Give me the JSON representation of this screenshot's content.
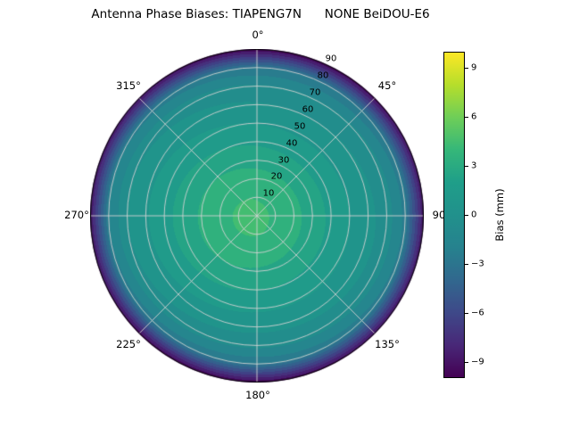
{
  "title": "Antenna Phase Biases: TIAPENG7N      NONE BeiDOU-E6",
  "chart_data": {
    "type": "polar_contour",
    "title": "Antenna Phase Biases: TIAPENG7N      NONE BeiDOU-E6",
    "station": "TIAPENG7N",
    "antenna": "NONE",
    "signal": "BeiDOU-E6",
    "theta_tick_labels": [
      "0°",
      "45°",
      "90",
      "135°",
      "180°",
      "225°",
      "270°",
      "315°"
    ],
    "radial_tick_labels": [
      "10",
      "20",
      "30",
      "40",
      "50",
      "60",
      "70",
      "80",
      "90"
    ],
    "radial_ticks_deg": [
      10,
      20,
      30,
      40,
      50,
      60,
      70,
      80,
      90
    ],
    "radial_axis_max_deg": 90,
    "contour_step_mm": 1.0,
    "bias_profile": {
      "zenith_deg": [
        0,
        10,
        20,
        30,
        40,
        50,
        60,
        70,
        80,
        90
      ],
      "bias_mm": [
        4.2,
        4.0,
        3.5,
        2.8,
        2.0,
        1.2,
        0.4,
        -0.5,
        -2.5,
        -9.5
      ]
    },
    "colorbar": {
      "label": "Bias (mm)",
      "ticks": [
        9,
        6,
        3,
        0,
        -3,
        -6,
        -9
      ],
      "tick_labels": [
        "9",
        "6",
        "3",
        "0",
        "−3",
        "−6",
        "−9"
      ],
      "vmin": -10,
      "vmax": 10,
      "colormap": "viridis"
    },
    "colormap_stops": [
      [
        "0.0",
        "#440154"
      ],
      [
        "0.1",
        "#482878"
      ],
      [
        "0.2",
        "#3e4989"
      ],
      [
        "0.3",
        "#31688e"
      ],
      [
        "0.4",
        "#26828e"
      ],
      [
        "0.5",
        "#21918c"
      ],
      [
        "0.6",
        "#1f9e89"
      ],
      [
        "0.7",
        "#35b779"
      ],
      [
        "0.8",
        "#6ece58"
      ],
      [
        "0.9",
        "#b5de2b"
      ],
      [
        "1.0",
        "#fde725"
      ]
    ],
    "grid": {
      "on": true,
      "color": "#d2d2d2",
      "spoke_step_deg": 45
    }
  }
}
